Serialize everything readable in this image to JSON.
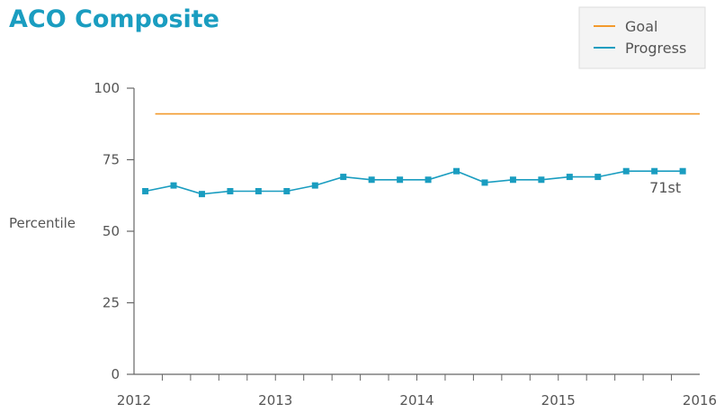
{
  "chart_data": {
    "type": "line",
    "title": "ACO Composite",
    "ylabel": "Percentile",
    "xlabel": "",
    "ylim": [
      0,
      100
    ],
    "xlim": [
      2012,
      2016
    ],
    "yticks": [
      "0",
      "25",
      "50",
      "75",
      "100"
    ],
    "xticks": [
      "2012",
      "2013",
      "2014",
      "2015",
      "2016"
    ],
    "legend": {
      "placement": "top-right",
      "entries": [
        "Goal",
        "Progress"
      ]
    },
    "grid": false,
    "colors": {
      "Goal": "#f39a2c",
      "Progress": "#1a9dc0",
      "title": "#1a9dc0",
      "axis": "#666666"
    },
    "series": [
      {
        "name": "Goal",
        "x": [
          2012.15,
          2016.0
        ],
        "values": [
          91,
          91
        ]
      },
      {
        "name": "Progress",
        "x": [
          2012.08,
          2012.28,
          2012.48,
          2012.68,
          2012.88,
          2013.08,
          2013.28,
          2013.48,
          2013.68,
          2013.88,
          2014.08,
          2014.28,
          2014.48,
          2014.68,
          2014.88,
          2015.08,
          2015.28,
          2015.48,
          2015.68,
          2015.88
        ],
        "values": [
          64,
          66,
          63,
          64,
          64,
          64,
          66,
          69,
          68,
          68,
          68,
          71,
          67,
          68,
          68,
          69,
          69,
          71,
          71,
          71
        ]
      }
    ],
    "annotations": [
      {
        "text": "71st",
        "x": 2015.88,
        "y": 71
      }
    ]
  }
}
